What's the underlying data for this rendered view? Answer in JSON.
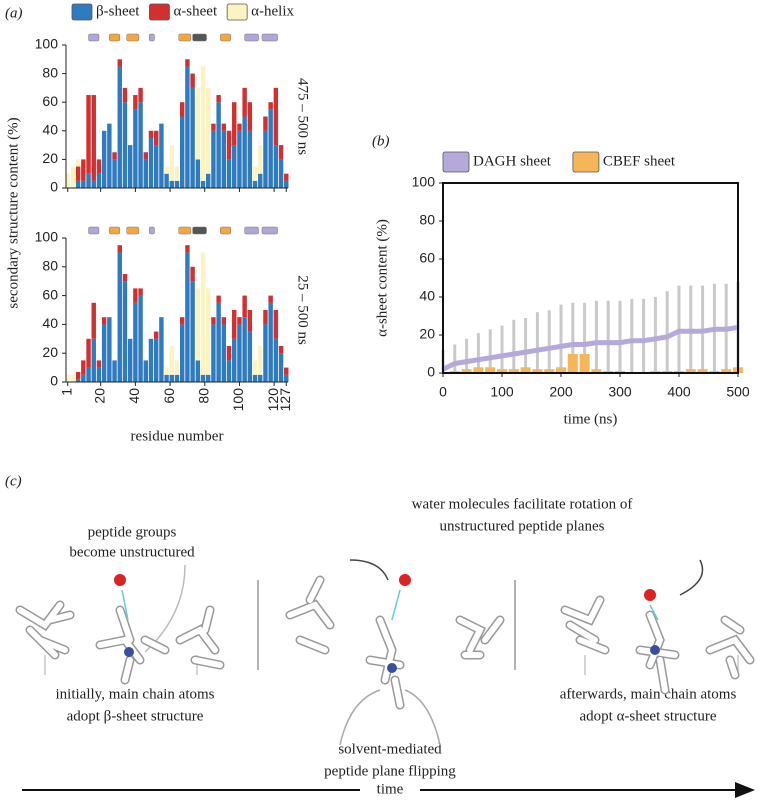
{
  "chart_data": [
    {
      "type": "bar",
      "stacked": true,
      "label": "(a)",
      "subtitle": "475 – 500 ns",
      "ylabel": "secondary structure content (%)",
      "x": [
        1,
        4,
        7,
        10,
        13,
        16,
        19,
        22,
        25,
        28,
        31,
        34,
        37,
        40,
        43,
        46,
        49,
        52,
        55,
        58,
        61,
        64,
        67,
        70,
        73,
        76,
        79,
        82,
        85,
        88,
        91,
        94,
        97,
        100,
        103,
        106,
        109,
        112,
        115,
        118,
        121,
        124,
        127
      ],
      "xlim": [
        0,
        128
      ],
      "xticks": [
        1,
        20,
        40,
        60,
        80,
        100,
        120,
        127
      ],
      "xtick_labels": false,
      "ylim": [
        0,
        100
      ],
      "yticks": [
        0,
        20,
        40,
        60,
        80,
        100
      ],
      "legend": "top",
      "bands": [
        {
          "start": 13,
          "end": 19,
          "color": "#b2a5d8"
        },
        {
          "start": 25,
          "end": 31,
          "color": "#f4a640"
        },
        {
          "start": 35,
          "end": 42,
          "color": "#f4a640"
        },
        {
          "start": 48,
          "end": 51,
          "color": "#b2a5d8"
        },
        {
          "start": 65,
          "end": 72,
          "color": "#f4a640"
        },
        {
          "start": 73,
          "end": 81,
          "color": "#555555"
        },
        {
          "start": 89,
          "end": 95,
          "color": "#f4a640"
        },
        {
          "start": 103,
          "end": 111,
          "color": "#b2a5d8"
        },
        {
          "start": 113,
          "end": 122,
          "color": "#b2a5d8"
        }
      ],
      "series": [
        {
          "name": "β-sheet",
          "color": "#2f7bbf",
          "values": [
            0,
            0,
            5,
            5,
            10,
            5,
            10,
            40,
            45,
            20,
            85,
            60,
            30,
            55,
            60,
            20,
            35,
            30,
            45,
            10,
            5,
            5,
            50,
            85,
            70,
            20,
            5,
            10,
            40,
            60,
            40,
            20,
            30,
            40,
            50,
            40,
            5,
            10,
            40,
            55,
            30,
            20,
            5
          ]
        },
        {
          "name": "α-sheet",
          "color": "#d0302f",
          "values": [
            0,
            0,
            10,
            15,
            55,
            60,
            10,
            0,
            0,
            5,
            5,
            10,
            0,
            10,
            10,
            5,
            5,
            10,
            0,
            0,
            0,
            0,
            10,
            5,
            10,
            0,
            0,
            0,
            5,
            5,
            5,
            20,
            30,
            5,
            20,
            20,
            0,
            0,
            10,
            5,
            40,
            10,
            5
          ]
        },
        {
          "name": "α-helix",
          "color": "#fbf4c0",
          "values": [
            10,
            15,
            5,
            0,
            0,
            0,
            0,
            0,
            0,
            0,
            0,
            0,
            0,
            0,
            0,
            0,
            0,
            0,
            0,
            5,
            25,
            10,
            0,
            0,
            0,
            50,
            80,
            60,
            0,
            0,
            0,
            0,
            0,
            0,
            0,
            0,
            10,
            20,
            0,
            0,
            0,
            0,
            0
          ]
        }
      ]
    },
    {
      "type": "bar",
      "stacked": true,
      "subtitle": "25 – 500 ns",
      "xlabel": "residue number",
      "x": [
        1,
        4,
        7,
        10,
        13,
        16,
        19,
        22,
        25,
        28,
        31,
        34,
        37,
        40,
        43,
        46,
        49,
        52,
        55,
        58,
        61,
        64,
        67,
        70,
        73,
        76,
        79,
        82,
        85,
        88,
        91,
        94,
        97,
        100,
        103,
        106,
        109,
        112,
        115,
        118,
        121,
        124,
        127
      ],
      "xlim": [
        0,
        128
      ],
      "xticks": [
        1,
        20,
        40,
        60,
        80,
        100,
        120,
        127
      ],
      "xtick_labels": true,
      "ylim": [
        0,
        100
      ],
      "yticks": [
        0,
        20,
        40,
        60,
        80,
        100
      ],
      "bands": [
        {
          "start": 13,
          "end": 19,
          "color": "#b2a5d8"
        },
        {
          "start": 25,
          "end": 31,
          "color": "#f4a640"
        },
        {
          "start": 35,
          "end": 42,
          "color": "#f4a640"
        },
        {
          "start": 48,
          "end": 51,
          "color": "#b2a5d8"
        },
        {
          "start": 65,
          "end": 72,
          "color": "#f4a640"
        },
        {
          "start": 73,
          "end": 81,
          "color": "#555555"
        },
        {
          "start": 89,
          "end": 95,
          "color": "#f4a640"
        },
        {
          "start": 103,
          "end": 111,
          "color": "#b2a5d8"
        },
        {
          "start": 113,
          "end": 122,
          "color": "#b2a5d8"
        }
      ],
      "series": [
        {
          "color": "#2f7bbf",
          "values": [
            0,
            0,
            2,
            5,
            10,
            30,
            10,
            40,
            45,
            15,
            90,
            70,
            30,
            55,
            60,
            15,
            30,
            30,
            45,
            5,
            5,
            5,
            40,
            90,
            70,
            15,
            5,
            5,
            40,
            55,
            40,
            15,
            30,
            40,
            45,
            35,
            5,
            5,
            40,
            55,
            30,
            20,
            5
          ]
        },
        {
          "color": "#d0302f",
          "values": [
            0,
            0,
            5,
            10,
            20,
            25,
            5,
            5,
            0,
            0,
            5,
            5,
            0,
            10,
            5,
            0,
            0,
            5,
            0,
            0,
            0,
            0,
            5,
            5,
            10,
            0,
            0,
            0,
            5,
            5,
            5,
            10,
            20,
            5,
            15,
            15,
            0,
            0,
            10,
            5,
            20,
            5,
            5
          ]
        },
        {
          "color": "#fbf4c0",
          "values": [
            5,
            5,
            0,
            0,
            0,
            0,
            0,
            0,
            0,
            0,
            0,
            0,
            0,
            0,
            0,
            0,
            0,
            0,
            0,
            5,
            20,
            10,
            0,
            0,
            0,
            50,
            85,
            60,
            0,
            0,
            0,
            0,
            0,
            0,
            0,
            0,
            10,
            20,
            0,
            0,
            0,
            0,
            0
          ]
        }
      ]
    },
    {
      "type": "line",
      "label": "(b)",
      "xlabel": "time (ns)",
      "ylabel": "α-sheet content (%)",
      "x": [
        0,
        20,
        40,
        60,
        80,
        100,
        120,
        140,
        160,
        180,
        200,
        220,
        240,
        260,
        280,
        300,
        320,
        340,
        360,
        380,
        400,
        420,
        440,
        460,
        480,
        500
      ],
      "xlim": [
        0,
        500
      ],
      "xticks": [
        0,
        100,
        200,
        300,
        400,
        500
      ],
      "ylim": [
        0,
        100
      ],
      "yticks": [
        0,
        20,
        40,
        60,
        80,
        100
      ],
      "legend": "top",
      "series": [
        {
          "name": "DAGH sheet",
          "color": "#b5a9dc",
          "error_color": "#c9c9c9",
          "values": [
            2,
            5,
            6,
            7,
            8,
            9,
            10,
            11,
            12,
            13,
            14,
            15,
            15,
            16,
            16,
            16,
            17,
            17,
            18,
            19,
            22,
            22,
            22,
            23,
            23,
            24
          ],
          "errors": [
            10,
            10,
            12,
            14,
            15,
            16,
            18,
            18,
            20,
            20,
            22,
            22,
            22,
            22,
            22,
            22,
            22,
            22,
            22,
            24,
            24,
            24,
            24,
            24,
            24,
            24
          ]
        },
        {
          "name": "CBEF sheet",
          "color": "#f7b55a",
          "kind": "bar",
          "values": [
            0,
            1,
            2,
            3,
            3,
            2,
            2,
            3,
            2,
            2,
            3,
            10,
            10,
            2,
            1,
            1,
            0,
            0,
            1,
            1,
            1,
            2,
            2,
            1,
            2,
            3
          ]
        }
      ]
    }
  ],
  "diagram": {
    "label": "(c)",
    "time_axis": "time",
    "notes": [
      {
        "lines": [
          "peptide groups",
          "become unstructured"
        ]
      },
      {
        "lines": [
          "water molecules facilitate rotation of",
          "unstructured peptide planes"
        ]
      },
      {
        "lines": [
          "initially, main chain atoms",
          "adopt β-sheet structure"
        ]
      },
      {
        "lines": [
          "solvent-mediated",
          "peptide plane flipping"
        ]
      },
      {
        "lines": [
          "afterwards, main chain atoms",
          "adopt α-sheet structure"
        ]
      }
    ]
  }
}
